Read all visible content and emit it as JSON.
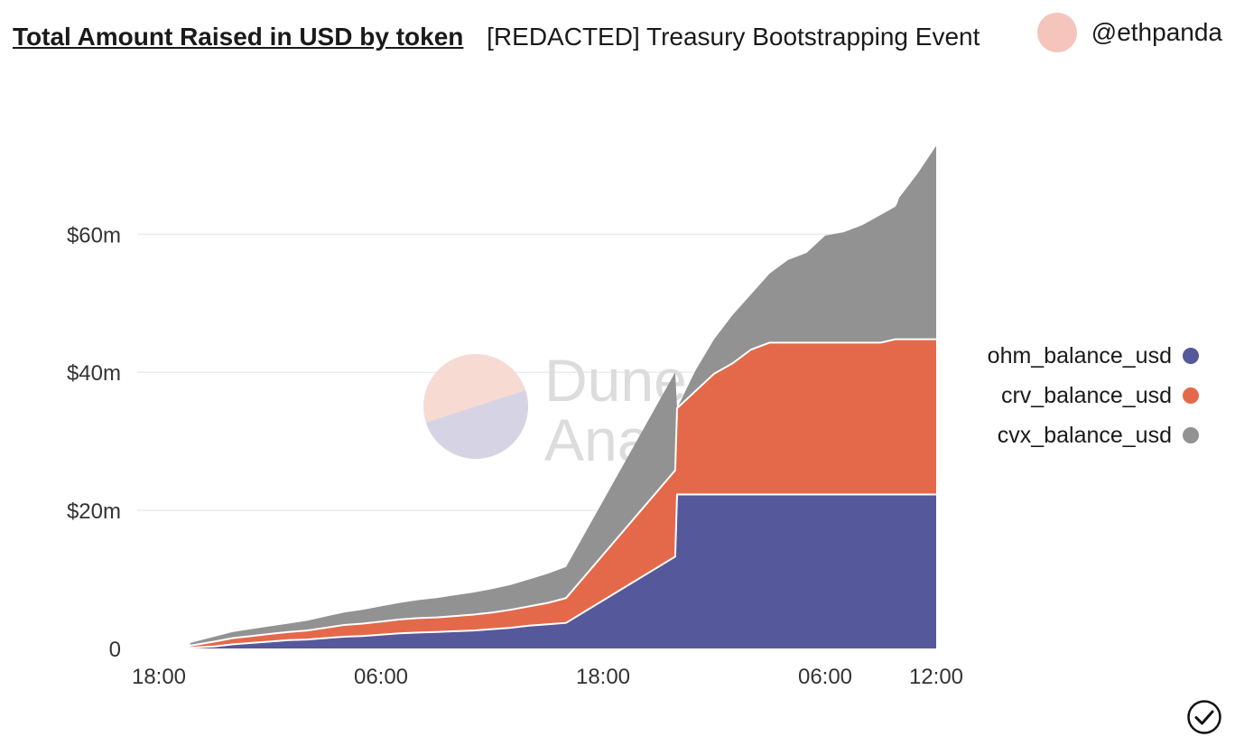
{
  "header": {
    "title": "Total Amount Raised in USD by token",
    "subtitle": "[REDACTED] Treasury Bootstrapping Event",
    "author": "@ethpanda"
  },
  "watermark": {
    "line1": "Dune",
    "line2": "Analytics"
  },
  "colors": {
    "ohm": "#55589a",
    "crv": "#e4694a",
    "cvx": "#929292",
    "avatar": "#f5c4bc",
    "grid": "#ececec"
  },
  "icons": {
    "status": "check-circle-icon"
  },
  "chart_data": {
    "type": "area",
    "stacked": true,
    "title": "Total Amount Raised in USD by token",
    "x_ticks": [
      {
        "hours": 0,
        "label": "18:00"
      },
      {
        "hours": 12,
        "label": "06:00"
      },
      {
        "hours": 24,
        "label": "18:00"
      },
      {
        "hours": 36,
        "label": "06:00"
      },
      {
        "hours": 42,
        "label": "12:00"
      }
    ],
    "y_ticks": [
      {
        "value": 0,
        "label": "0"
      },
      {
        "value": 20,
        "label": "$20m"
      },
      {
        "value": 40,
        "label": "$40m"
      },
      {
        "value": 60,
        "label": "$60m"
      }
    ],
    "xlim": [
      0,
      42
    ],
    "ylim": [
      0,
      73
    ],
    "unit": "USD millions",
    "legend_position": "right",
    "grid": true,
    "x_hours": [
      1.7,
      3,
      4,
      5,
      6,
      7,
      8,
      9,
      10,
      11,
      12,
      13,
      14,
      15,
      16,
      17,
      18,
      19,
      20,
      21,
      22,
      27.9,
      28,
      29,
      30,
      31,
      32,
      33,
      34,
      35,
      36,
      37,
      38,
      39,
      39.8,
      39.9,
      40,
      41,
      42
    ],
    "series": [
      {
        "name": "ohm_balance_usd",
        "color": "#55589a",
        "values": [
          0.1,
          0.3,
          0.6,
          0.8,
          1.0,
          1.2,
          1.3,
          1.5,
          1.7,
          1.8,
          2.0,
          2.2,
          2.3,
          2.4,
          2.5,
          2.6,
          2.8,
          3.0,
          3.3,
          3.5,
          3.7,
          13.3,
          22.3,
          22.3,
          22.3,
          22.3,
          22.3,
          22.3,
          22.3,
          22.3,
          22.3,
          22.3,
          22.3,
          22.3,
          22.3,
          22.3,
          22.3,
          22.3,
          22.3
        ]
      },
      {
        "name": "crv_balance_usd",
        "color": "#e4694a",
        "values": [
          0.3,
          0.7,
          0.9,
          1.0,
          1.1,
          1.2,
          1.3,
          1.5,
          1.7,
          1.8,
          1.9,
          2.0,
          2.1,
          2.1,
          2.2,
          2.3,
          2.4,
          2.6,
          2.8,
          3.1,
          3.6,
          12.5,
          12.5,
          15.0,
          17.5,
          19.0,
          21.0,
          22.0,
          22.0,
          22.0,
          22.0,
          22.0,
          22.0,
          22.0,
          22.5,
          22.5,
          22.5,
          22.5,
          22.5
        ]
      },
      {
        "name": "cvx_balance_usd",
        "color": "#929292",
        "values": [
          0.4,
          0.7,
          0.9,
          1.0,
          1.1,
          1.2,
          1.4,
          1.6,
          1.8,
          2.0,
          2.2,
          2.4,
          2.6,
          2.8,
          3.0,
          3.2,
          3.4,
          3.6,
          3.9,
          4.2,
          4.5,
          14.2,
          0,
          3.0,
          5.0,
          7.0,
          8.0,
          10.0,
          12.0,
          13.0,
          15.5,
          16.0,
          17.0,
          18.5,
          19.2,
          19.7,
          20.5,
          24.0,
          28.0
        ]
      }
    ]
  }
}
